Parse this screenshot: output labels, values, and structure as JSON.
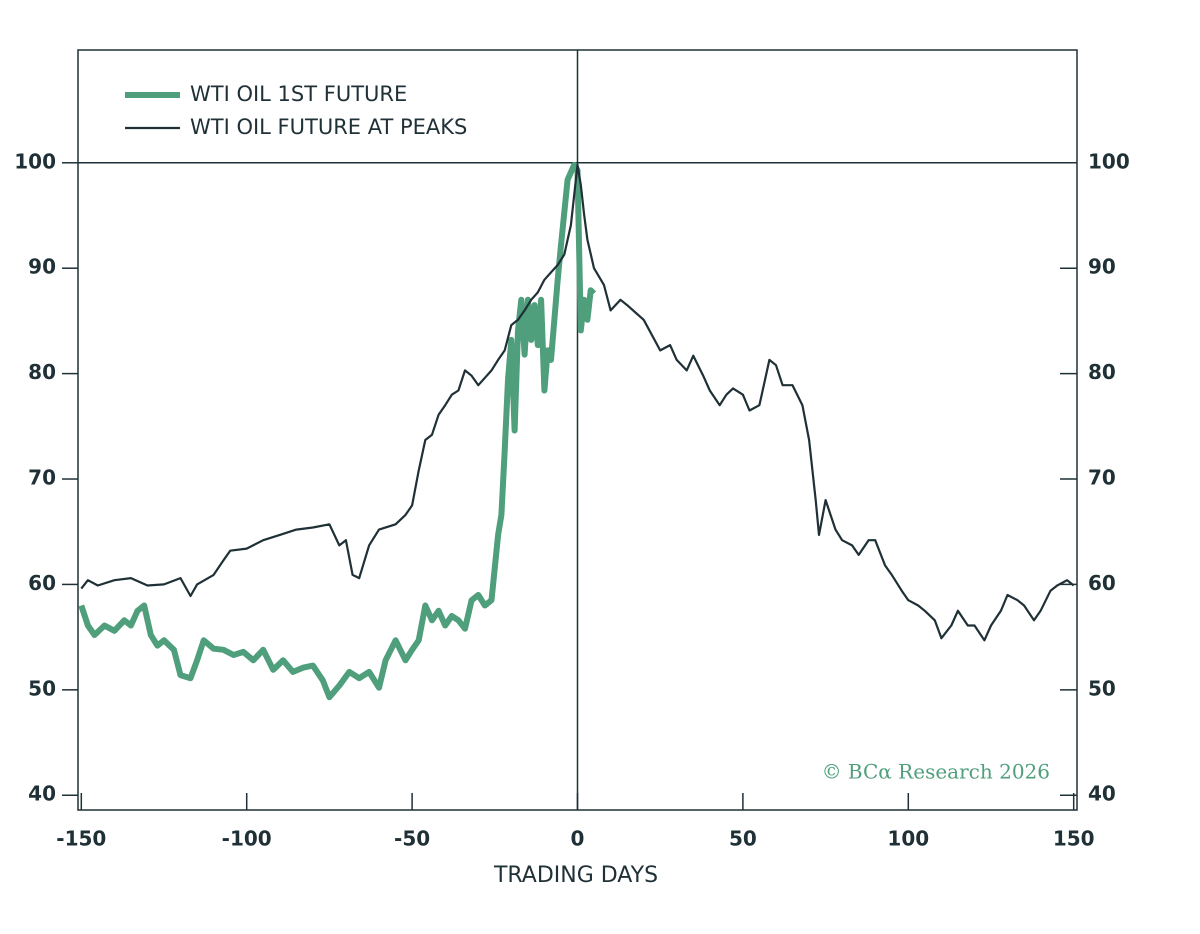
{
  "chart_data": {
    "type": "line",
    "xlabel": "TRADING DAYS",
    "annotation": "© BCα Research 2026",
    "xlim": [
      -151,
      151
    ],
    "ylim": [
      38.6,
      110.7
    ],
    "y2lim": [
      38.6,
      110.7
    ],
    "xticks": [
      -150,
      -100,
      -50,
      0,
      50,
      100,
      150
    ],
    "yticks": [
      40,
      50,
      60,
      70,
      80,
      90,
      100
    ],
    "y2ticks": [
      40,
      50,
      60,
      70,
      80,
      90,
      100
    ],
    "reference_lines": {
      "x": 0,
      "y": 100
    },
    "legend": "upper left",
    "series": [
      {
        "name": "WTI OIL 1ST FUTURE",
        "color": "#4f9e7c",
        "x": [
          -150,
          -148,
          -146,
          -143,
          -140,
          -137,
          -135,
          -133,
          -131,
          -129,
          -127,
          -125,
          -122,
          -120,
          -117,
          -115,
          -113,
          -110,
          -107,
          -104,
          -101,
          -98,
          -95,
          -92,
          -89,
          -86,
          -83,
          -80,
          -77,
          -75,
          -72,
          -69,
          -66,
          -63,
          -60,
          -58,
          -55,
          -52,
          -50,
          -48,
          -46,
          -44,
          -42,
          -40,
          -38,
          -36,
          -34,
          -32,
          -30,
          -28,
          -26,
          -24,
          -23,
          -22,
          -21,
          -20,
          -19,
          -18,
          -17,
          -16,
          -15,
          -14,
          -13,
          -12,
          -11,
          -10,
          -9,
          -8,
          -6,
          -5,
          -3,
          -1,
          0,
          1,
          2,
          3,
          4,
          5
        ],
        "values": [
          58,
          56.1,
          55.2,
          56.1,
          55.6,
          56.6,
          56.1,
          57.5,
          58,
          55.2,
          54.2,
          54.7,
          53.8,
          51.4,
          51.1,
          52.8,
          54.7,
          53.9,
          53.8,
          53.3,
          53.6,
          52.8,
          53.8,
          51.9,
          52.8,
          51.7,
          52.1,
          52.3,
          50.9,
          49.3,
          50.4,
          51.7,
          51.1,
          51.7,
          50.2,
          52.8,
          54.7,
          52.8,
          53.8,
          54.7,
          58,
          56.6,
          57.5,
          56.1,
          57,
          56.6,
          55.8,
          58.5,
          59,
          58,
          58.5,
          64.7,
          66.6,
          72.7,
          79.4,
          83.2,
          74.6,
          84.1,
          87,
          81.8,
          87,
          83.2,
          86.5,
          82.7,
          87,
          78.4,
          82.2,
          81.3,
          88.9,
          92.2,
          98.4,
          99.8,
          99.3,
          84.1,
          87,
          85.1,
          87.9,
          87.6
        ]
      },
      {
        "name": "WTI OIL FUTURE AT PEAKS",
        "color": "#1f3036",
        "x": [
          -150,
          -148,
          -145,
          -140,
          -135,
          -130,
          -125,
          -120,
          -117,
          -115,
          -110,
          -107,
          -105,
          -100,
          -95,
          -90,
          -85,
          -80,
          -75,
          -72,
          -70,
          -68,
          -66,
          -63,
          -60,
          -55,
          -52,
          -50,
          -48,
          -46,
          -44,
          -42,
          -40,
          -38,
          -36,
          -34,
          -32,
          -30,
          -28,
          -26,
          -24,
          -22,
          -20,
          -18,
          -16,
          -14,
          -12,
          -10,
          -8,
          -6,
          -4,
          -2,
          0,
          1,
          2,
          3,
          5,
          8,
          10,
          13,
          15,
          20,
          25,
          28,
          30,
          33,
          35,
          38,
          40,
          43,
          45,
          47,
          50,
          52,
          55,
          58,
          60,
          62,
          65,
          68,
          70,
          72,
          73,
          75,
          78,
          80,
          83,
          85,
          88,
          90,
          93,
          95,
          98,
          100,
          103,
          105,
          108,
          110,
          113,
          115,
          118,
          120,
          123,
          125,
          128,
          130,
          133,
          135,
          138,
          140,
          143,
          145,
          148,
          150
        ],
        "values": [
          59.6,
          60.4,
          59.9,
          60.4,
          60.6,
          59.9,
          60,
          60.6,
          58.9,
          60,
          60.9,
          62.3,
          63.2,
          63.4,
          64.2,
          64.7,
          65.2,
          65.4,
          65.7,
          63.7,
          64.2,
          60.9,
          60.6,
          63.7,
          65.2,
          65.7,
          66.6,
          67.5,
          70.8,
          73.7,
          74.2,
          76.1,
          77,
          78,
          78.4,
          80.3,
          79.8,
          78.9,
          79.6,
          80.3,
          81.3,
          82.2,
          84.6,
          85.1,
          86,
          87,
          87.7,
          88.9,
          89.6,
          90.3,
          91.3,
          94.1,
          99.8,
          97.9,
          95.1,
          92.7,
          90,
          88.4,
          86,
          87,
          86.5,
          85.1,
          82.2,
          82.7,
          81.3,
          80.3,
          81.7,
          79.8,
          78.4,
          77,
          78,
          78.6,
          78,
          76.5,
          77,
          81.3,
          80.8,
          78.9,
          78.9,
          77,
          73.7,
          68,
          64.7,
          68,
          65.2,
          64.2,
          63.7,
          62.8,
          64.2,
          64.2,
          61.8,
          60.9,
          59.4,
          58.5,
          58,
          57.5,
          56.6,
          54.9,
          56.1,
          57.5,
          56.1,
          56.1,
          54.7,
          56.1,
          57.5,
          59,
          58.5,
          58,
          56.6,
          57.5,
          59.4,
          59.9,
          60.4,
          59.9
        ]
      }
    ]
  }
}
